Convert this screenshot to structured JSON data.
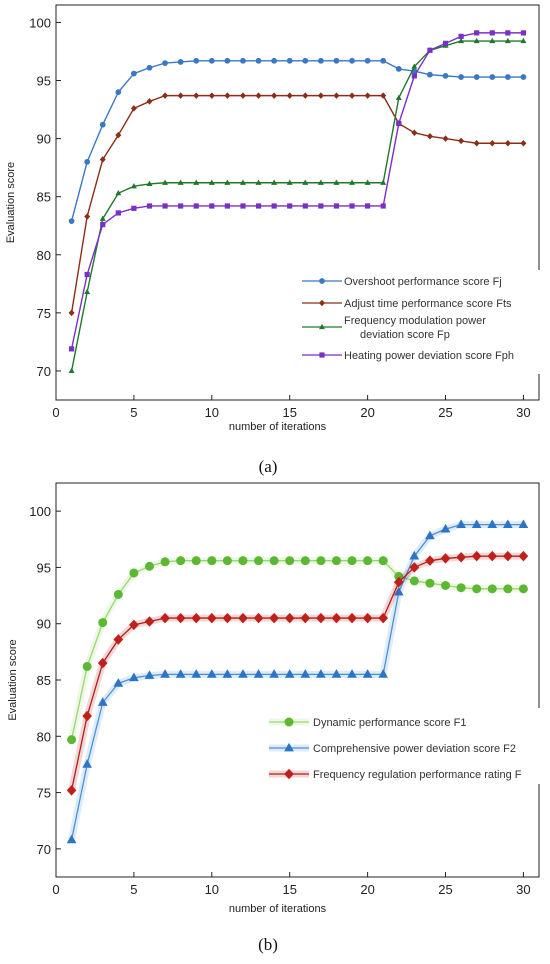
{
  "chart_data": [
    {
      "type": "line",
      "panel_label": "a",
      "xlabel": "number of iterations",
      "ylabel": "Evaluation score",
      "xlim": [
        0,
        31
      ],
      "ylim": [
        67.5,
        101.5
      ],
      "xticks": [
        0,
        5,
        10,
        15,
        20,
        25,
        30
      ],
      "yticks": [
        70,
        75,
        80,
        85,
        90,
        95,
        100
      ],
      "legend_position": "bottom-right",
      "x": [
        1,
        2,
        3,
        4,
        5,
        6,
        7,
        8,
        9,
        10,
        11,
        12,
        13,
        14,
        15,
        16,
        17,
        18,
        19,
        20,
        21,
        22,
        23,
        24,
        25,
        26,
        27,
        28,
        29,
        30
      ],
      "series": [
        {
          "name": "Overshoot performance score Fj",
          "color": "#3b78c4",
          "marker": "circle",
          "values": [
            82.9,
            88.0,
            91.2,
            94.0,
            95.6,
            96.1,
            96.5,
            96.6,
            96.7,
            96.7,
            96.7,
            96.7,
            96.7,
            96.7,
            96.7,
            96.7,
            96.7,
            96.7,
            96.7,
            96.7,
            96.7,
            96.0,
            95.8,
            95.5,
            95.4,
            95.3,
            95.3,
            95.3,
            95.3,
            95.3
          ]
        },
        {
          "name": "Adjust  time performance score Fts",
          "color": "#8b2e16",
          "marker": "diamond",
          "values": [
            75.0,
            83.3,
            88.2,
            90.3,
            92.6,
            93.2,
            93.7,
            93.7,
            93.7,
            93.7,
            93.7,
            93.7,
            93.7,
            93.7,
            93.7,
            93.7,
            93.7,
            93.7,
            93.7,
            93.7,
            93.7,
            91.3,
            90.5,
            90.2,
            90.0,
            89.8,
            89.6,
            89.6,
            89.6,
            89.6
          ]
        },
        {
          "name": "Frequency modulation power deviation score Fp",
          "legend_lines": [
            "Frequency modulation power",
            "deviation score Fp"
          ],
          "color": "#1e7a2a",
          "marker": "triangle",
          "values": [
            70.0,
            76.8,
            83.1,
            85.3,
            85.9,
            86.1,
            86.2,
            86.2,
            86.2,
            86.2,
            86.2,
            86.2,
            86.2,
            86.2,
            86.2,
            86.2,
            86.2,
            86.2,
            86.2,
            86.2,
            86.2,
            93.5,
            96.2,
            97.6,
            98.0,
            98.4,
            98.4,
            98.4,
            98.4,
            98.4
          ]
        },
        {
          "name": "Heating power deviation score Fph",
          "color": "#7a2fc7",
          "marker": "square",
          "values": [
            71.9,
            78.3,
            82.6,
            83.6,
            84.0,
            84.2,
            84.2,
            84.2,
            84.2,
            84.2,
            84.2,
            84.2,
            84.2,
            84.2,
            84.2,
            84.2,
            84.2,
            84.2,
            84.2,
            84.2,
            84.2,
            91.3,
            95.4,
            97.6,
            98.2,
            98.8,
            99.1,
            99.1,
            99.1,
            99.1
          ]
        }
      ]
    },
    {
      "type": "line",
      "panel_label": "b",
      "xlabel": "number of iterations",
      "ylabel": "Evaluation score",
      "xlim": [
        0,
        31
      ],
      "ylim": [
        67.5,
        102.5
      ],
      "xticks": [
        0,
        5,
        10,
        15,
        20,
        25,
        30
      ],
      "yticks": [
        70,
        75,
        80,
        85,
        90,
        95,
        100
      ],
      "legend_position": "bottom-right",
      "x": [
        1,
        2,
        3,
        4,
        5,
        6,
        7,
        8,
        9,
        10,
        11,
        12,
        13,
        14,
        15,
        16,
        17,
        18,
        19,
        20,
        21,
        22,
        23,
        24,
        25,
        26,
        27,
        28,
        29,
        30
      ],
      "series": [
        {
          "name": "Dynamic performance score F1",
          "color": "#5cb832",
          "line_color": "#9bd66f",
          "marker": "circle",
          "values": [
            79.7,
            86.2,
            90.1,
            92.6,
            94.5,
            95.1,
            95.5,
            95.6,
            95.6,
            95.6,
            95.6,
            95.6,
            95.6,
            95.6,
            95.6,
            95.6,
            95.6,
            95.6,
            95.6,
            95.6,
            95.6,
            94.2,
            93.8,
            93.6,
            93.4,
            93.2,
            93.1,
            93.1,
            93.1,
            93.1
          ]
        },
        {
          "name": "Comprehensive power deviation score F2",
          "color": "#2e74c4",
          "line_color": "#4a90d9",
          "marker": "triangle",
          "values": [
            70.8,
            77.5,
            83.0,
            84.7,
            85.2,
            85.4,
            85.5,
            85.5,
            85.5,
            85.5,
            85.5,
            85.5,
            85.5,
            85.5,
            85.5,
            85.5,
            85.5,
            85.5,
            85.5,
            85.5,
            85.5,
            92.8,
            96.0,
            97.8,
            98.4,
            98.8,
            98.8,
            98.8,
            98.8,
            98.8
          ]
        },
        {
          "name": "Frequency regulation performance rating F",
          "color": "#c0201a",
          "line_color": "#b31c1c",
          "marker": "diamond",
          "values": [
            75.2,
            81.8,
            86.5,
            88.6,
            89.9,
            90.2,
            90.5,
            90.5,
            90.5,
            90.5,
            90.5,
            90.5,
            90.5,
            90.5,
            90.5,
            90.5,
            90.5,
            90.5,
            90.5,
            90.5,
            90.5,
            93.7,
            95.0,
            95.6,
            95.8,
            95.9,
            96.0,
            96.0,
            96.0,
            96.0
          ]
        }
      ]
    }
  ],
  "captions": [
    "(a)",
    "(b)"
  ]
}
